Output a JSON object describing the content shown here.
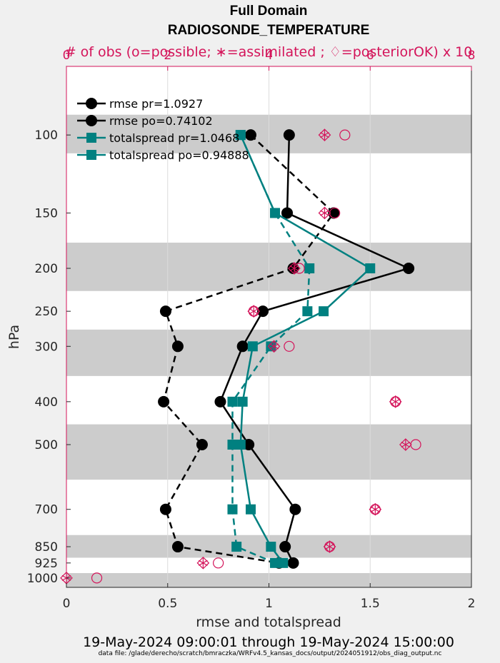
{
  "chart_data": {
    "type": "line",
    "title": "Full Domain",
    "subtitle": "RADIOSONDE_TEMPERATURE",
    "top_axis_label": "# of obs (o=possible; ∗=assimilated ; ♢=posteriorOK) x 10",
    "xlabel": "rmse and totalspread",
    "ylabel": "hPa",
    "xlim": [
      0,
      2
    ],
    "top_xlim": [
      0,
      8
    ],
    "x_ticks": [
      "0",
      "0.5",
      "1",
      "1.5",
      "2"
    ],
    "top_ticks": [
      "0",
      "2",
      "4",
      "6",
      "8"
    ],
    "y_scale": "log",
    "ylim": [
      1050,
      70
    ],
    "y_ticks": [
      "100",
      "150",
      "200",
      "250",
      "300",
      "400",
      "500",
      "700",
      "850",
      "925",
      "1000"
    ],
    "levels": [
      100,
      150,
      200,
      250,
      300,
      400,
      500,
      700,
      850,
      925,
      1000
    ],
    "shaded_bands": [
      [
        90,
        110
      ],
      [
        175,
        225
      ],
      [
        275,
        350
      ],
      [
        450,
        600
      ],
      [
        800,
        900
      ],
      [
        975,
        1050
      ]
    ],
    "series": [
      {
        "name": "rmse pr=1.0927",
        "color": "#000000",
        "dash": false,
        "marker": "circle",
        "levels": [
          100,
          150,
          200,
          250,
          300,
          400,
          500,
          700,
          850,
          925
        ],
        "values": [
          1.1,
          1.09,
          1.69,
          0.97,
          0.87,
          0.76,
          0.9,
          1.13,
          1.08,
          1.12
        ]
      },
      {
        "name": "rmse po=0.74102",
        "color": "#000000",
        "dash": true,
        "marker": "circle",
        "levels": [
          100,
          150,
          200,
          250,
          300,
          400,
          500,
          700,
          850,
          925
        ],
        "values": [
          0.91,
          1.32,
          1.12,
          0.49,
          0.55,
          0.48,
          0.67,
          0.49,
          0.55,
          1.05
        ]
      },
      {
        "name": "totalspread pr=1.0468",
        "color": "#008080",
        "dash": false,
        "marker": "square",
        "levels": [
          100,
          150,
          200,
          250,
          300,
          400,
          500,
          700,
          850,
          925
        ],
        "values": [
          0.86,
          1.03,
          1.5,
          1.27,
          0.92,
          0.87,
          0.86,
          0.91,
          1.01,
          1.07
        ]
      },
      {
        "name": "totalspread po=0.94888",
        "color": "#008080",
        "dash": true,
        "marker": "square",
        "levels": [
          100,
          150,
          200,
          250,
          300,
          400,
          500,
          700,
          850,
          925
        ],
        "values": [
          0.86,
          1.03,
          1.2,
          1.19,
          1.01,
          0.82,
          0.82,
          0.82,
          0.84,
          1.03
        ]
      }
    ],
    "obs_counts": {
      "possible": {
        "levels": [
          100,
          150,
          200,
          250,
          300,
          400,
          500,
          700,
          850,
          925,
          1000
        ],
        "values": [
          5.5,
          5.3,
          4.6,
          3.7,
          4.4,
          6.5,
          6.9,
          6.1,
          5.2,
          3.0,
          0.6
        ]
      },
      "assimilated": {
        "levels": [
          100,
          150,
          200,
          250,
          300,
          400,
          500,
          700,
          850,
          925,
          1000
        ],
        "values": [
          5.1,
          5.1,
          4.5,
          3.7,
          4.1,
          6.5,
          6.7,
          6.1,
          5.2,
          2.7,
          0.0
        ]
      },
      "posteriorOK": {
        "levels": [
          100,
          150,
          200,
          250,
          300,
          400,
          500,
          700,
          850,
          925,
          1000
        ],
        "values": [
          5.1,
          5.1,
          4.5,
          3.7,
          4.1,
          6.5,
          6.7,
          6.1,
          5.2,
          2.7,
          0.0
        ]
      }
    },
    "legend_position": "top-left",
    "colors": {
      "rmse": "#000000",
      "spread": "#008080",
      "obs": "#d4145a",
      "band": "#cccccc"
    }
  },
  "footer": {
    "time_range": "19-May-2024 09:00:01 through 19-May-2024 15:00:00",
    "data_file": "data file: /glade/derecho/scratch/bmraczka/WRFv4.5_kansas_docs/output/2024051912/obs_diag_output.nc"
  }
}
